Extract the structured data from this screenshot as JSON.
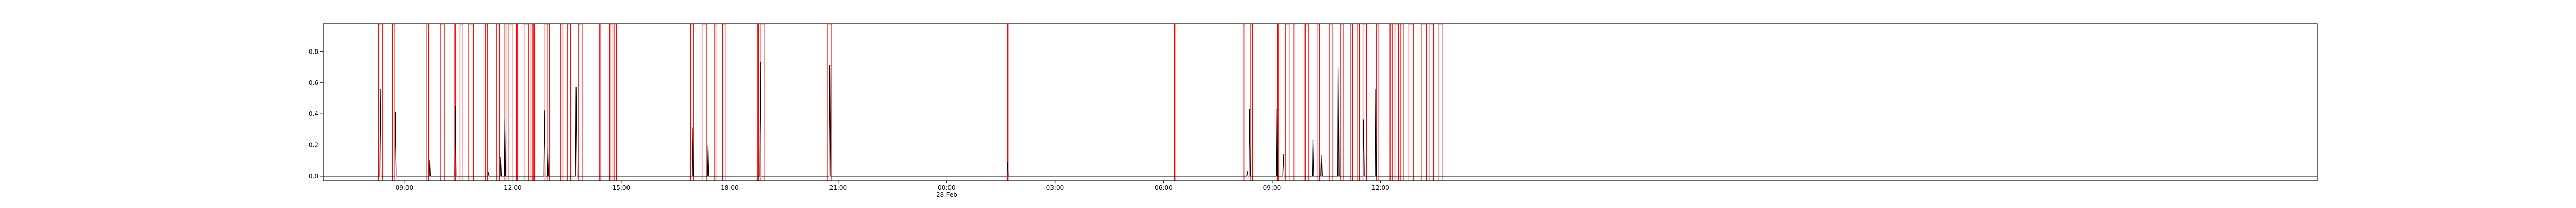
{
  "chart_data": {
    "type": "line",
    "title": "",
    "xlabel": "",
    "ylabel": "",
    "colors": {
      "series_main": "#000000",
      "series_flag": "#ff0000",
      "axes": "#000000"
    },
    "xlim": [
      "2020-02-27 06:45",
      "2020-02-29 13:55"
    ],
    "ylim": [
      -0.03,
      0.98
    ],
    "yticks": [
      {
        "value": 0.0,
        "label": "0.0"
      },
      {
        "value": 0.2,
        "label": "0.2"
      },
      {
        "value": 0.4,
        "label": "0.4"
      },
      {
        "value": 0.6,
        "label": "0.6"
      },
      {
        "value": 0.8,
        "label": "0.8"
      }
    ],
    "xticks": [
      {
        "t": "2020-02-27 09:00",
        "label": "09:00",
        "sub": ""
      },
      {
        "t": "2020-02-27 12:00",
        "label": "12:00",
        "sub": ""
      },
      {
        "t": "2020-02-27 15:00",
        "label": "15:00",
        "sub": ""
      },
      {
        "t": "2020-02-27 18:00",
        "label": "18:00",
        "sub": ""
      },
      {
        "t": "2020-02-27 21:00",
        "label": "21:00",
        "sub": ""
      },
      {
        "t": "2020-02-28 00:00",
        "label": "00:00",
        "sub": "28-Feb"
      },
      {
        "t": "2020-02-28 03:00",
        "label": "03:00",
        "sub": ""
      },
      {
        "t": "2020-02-28 06:00",
        "label": "06:00",
        "sub": ""
      },
      {
        "t": "2020-02-28 09:00",
        "label": "09:00",
        "sub": ""
      },
      {
        "t": "2020-02-28 12:00",
        "label": "12:00",
        "sub": ""
      }
    ],
    "series": [
      {
        "kind": "baseline_spikes",
        "baseline": 0.0,
        "spikes": [
          {
            "t": "2020-02-27 08:20",
            "y": 0.56
          },
          {
            "t": "2020-02-27 08:45",
            "y": 0.41
          },
          {
            "t": "2020-02-27 09:42",
            "y": 0.1
          },
          {
            "t": "2020-02-27 10:25",
            "y": 0.45
          },
          {
            "t": "2020-02-27 11:20",
            "y": 0.02
          },
          {
            "t": "2020-02-27 11:40",
            "y": 0.12
          },
          {
            "t": "2020-02-27 11:47",
            "y": 0.36
          },
          {
            "t": "2020-02-27 12:52",
            "y": 0.42
          },
          {
            "t": "2020-02-27 12:58",
            "y": 0.17
          },
          {
            "t": "2020-02-27 13:45",
            "y": 0.57
          },
          {
            "t": "2020-02-27 16:59",
            "y": 0.31
          },
          {
            "t": "2020-02-27 17:24",
            "y": 0.2
          },
          {
            "t": "2020-02-27 18:51",
            "y": 0.73
          },
          {
            "t": "2020-02-27 20:46",
            "y": 0.71
          },
          {
            "t": "2020-02-28 01:41",
            "y": 0.09
          },
          {
            "t": "2020-02-28 08:19",
            "y": 0.03
          },
          {
            "t": "2020-02-28 08:23",
            "y": 0.43
          },
          {
            "t": "2020-02-28 09:08",
            "y": 0.43
          },
          {
            "t": "2020-02-28 09:19",
            "y": 0.14
          },
          {
            "t": "2020-02-28 10:08",
            "y": 0.23
          },
          {
            "t": "2020-02-28 10:22",
            "y": 0.13
          },
          {
            "t": "2020-02-28 10:50",
            "y": 0.7
          },
          {
            "t": "2020-02-28 11:32",
            "y": 0.36
          },
          {
            "t": "2020-02-28 11:52",
            "y": 0.56
          }
        ]
      },
      {
        "kind": "flag_spans",
        "spans": [
          [
            "2020-02-27 08:17",
            "2020-02-27 08:24"
          ],
          [
            "2020-02-27 08:40",
            "2020-02-27 08:44"
          ],
          [
            "2020-02-27 09:37",
            "2020-02-27 09:40"
          ],
          [
            "2020-02-27 10:00",
            "2020-02-27 10:06"
          ],
          [
            "2020-02-27 10:23",
            "2020-02-27 10:25"
          ],
          [
            "2020-02-27 10:32",
            "2020-02-27 10:37"
          ],
          [
            "2020-02-27 10:47",
            "2020-02-27 10:55"
          ],
          [
            "2020-02-27 11:15",
            "2020-02-27 11:18"
          ],
          [
            "2020-02-27 11:33",
            "2020-02-27 11:38"
          ],
          [
            "2020-02-27 11:47",
            "2020-02-27 11:49"
          ],
          [
            "2020-02-27 11:53",
            "2020-02-27 12:00"
          ],
          [
            "2020-02-27 12:06",
            "2020-02-27 12:08"
          ],
          [
            "2020-02-27 12:19",
            "2020-02-27 12:26"
          ],
          [
            "2020-02-27 12:30",
            "2020-02-27 12:34"
          ],
          [
            "2020-02-27 12:33",
            "2020-02-27 12:36"
          ],
          [
            "2020-02-27 12:53",
            "2020-02-27 12:58"
          ],
          [
            "2020-02-27 12:58",
            "2020-02-27 13:01"
          ],
          [
            "2020-02-27 13:19",
            "2020-02-27 13:23"
          ],
          [
            "2020-02-27 13:31",
            "2020-02-27 13:36"
          ],
          [
            "2020-02-27 13:49",
            "2020-02-27 13:55"
          ],
          [
            "2020-02-27 14:24",
            "2020-02-27 14:26"
          ],
          [
            "2020-02-27 14:41",
            "2020-02-27 14:46"
          ],
          [
            "2020-02-27 14:49",
            "2020-02-27 14:52"
          ],
          [
            "2020-02-27 16:55",
            "2020-02-27 17:00"
          ],
          [
            "2020-02-27 17:14",
            "2020-02-27 17:22"
          ],
          [
            "2020-02-27 17:34",
            "2020-02-27 17:37"
          ],
          [
            "2020-02-27 17:48",
            "2020-02-27 17:54"
          ],
          [
            "2020-02-27 18:46",
            "2020-02-27 18:48"
          ],
          [
            "2020-02-27 18:52",
            "2020-02-27 18:58"
          ],
          [
            "2020-02-27 20:43",
            "2020-02-27 20:49"
          ],
          [
            "2020-02-28 01:41",
            "2020-02-28 01:42"
          ],
          [
            "2020-02-28 06:18",
            "2020-02-28 06:19"
          ],
          [
            "2020-02-28 08:12",
            "2020-02-28 08:15"
          ],
          [
            "2020-02-28 08:25",
            "2020-02-28 08:28"
          ],
          [
            "2020-02-28 09:09",
            "2020-02-28 09:11"
          ],
          [
            "2020-02-28 09:23",
            "2020-02-28 09:28"
          ],
          [
            "2020-02-28 09:35",
            "2020-02-28 09:38"
          ],
          [
            "2020-02-28 09:55",
            "2020-02-28 10:00"
          ],
          [
            "2020-02-28 10:15",
            "2020-02-28 10:19"
          ],
          [
            "2020-02-28 10:35",
            "2020-02-28 10:40"
          ],
          [
            "2020-02-28 10:53",
            "2020-02-28 10:58"
          ],
          [
            "2020-02-28 11:10",
            "2020-02-28 11:14"
          ],
          [
            "2020-02-28 11:21",
            "2020-02-28 11:25"
          ],
          [
            "2020-02-28 11:31",
            "2020-02-28 11:37"
          ],
          [
            "2020-02-28 11:53",
            "2020-02-28 11:56"
          ],
          [
            "2020-02-28 12:16",
            "2020-02-28 12:20"
          ],
          [
            "2020-02-28 12:24",
            "2020-02-28 12:30"
          ],
          [
            "2020-02-28 12:33",
            "2020-02-28 12:38"
          ],
          [
            "2020-02-28 12:47",
            "2020-02-28 12:55"
          ],
          [
            "2020-02-28 13:09",
            "2020-02-28 13:16"
          ],
          [
            "2020-02-28 13:22",
            "2020-02-28 13:28"
          ],
          [
            "2020-02-28 13:36",
            "2020-02-28 13:42"
          ]
        ]
      }
    ]
  }
}
